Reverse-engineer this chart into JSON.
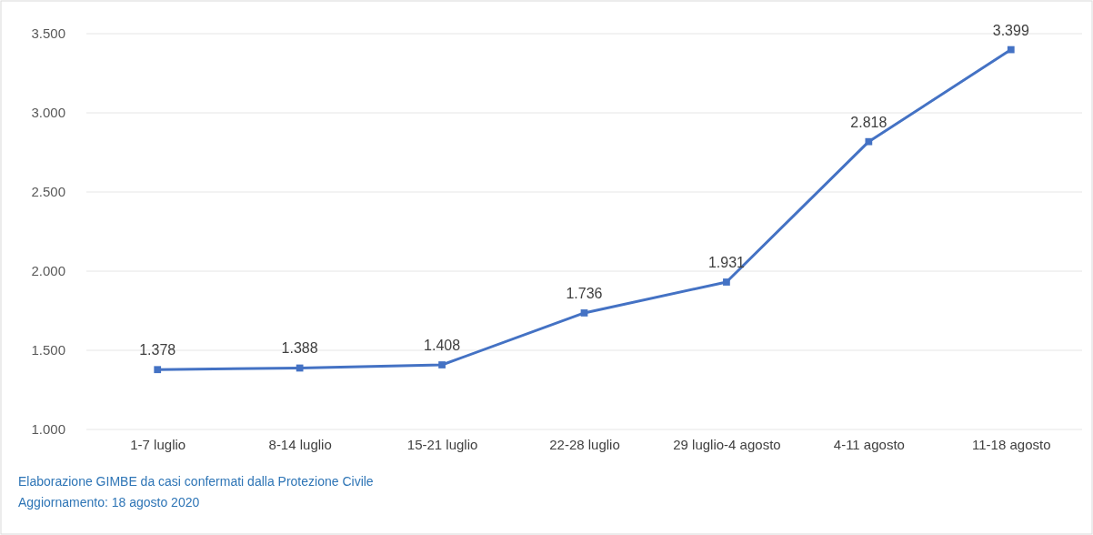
{
  "chart_data": {
    "type": "line",
    "categories": [
      "1-7 luglio",
      "8-14 luglio",
      "15-21 luglio",
      "22-28 luglio",
      "29 luglio-4 agosto",
      "4-11 agosto",
      "11-18 agosto"
    ],
    "series": [
      {
        "color": "#4472c4",
        "values": [
          1378,
          1388,
          1408,
          1736,
          1931,
          2818,
          3399
        ],
        "value_labels": [
          "1.378",
          "1.388",
          "1.408",
          "1.736",
          "1.931",
          "2.818",
          "3.399"
        ]
      }
    ],
    "ylim": [
      1000,
      3500
    ],
    "yticks": [
      {
        "value": 1000,
        "label": "1.000"
      },
      {
        "value": 1500,
        "label": "1.500"
      },
      {
        "value": 2000,
        "label": "2.000"
      },
      {
        "value": 2500,
        "label": "2.500"
      },
      {
        "value": 3000,
        "label": "3.000"
      },
      {
        "value": 3500,
        "label": "3.500"
      }
    ],
    "grid": "y",
    "marker": "square",
    "line_style": "solid",
    "annotations": [
      "Elaborazione GIMBE da casi confermati dalla Protezione Civile",
      "Aggiornamento: 18 agosto 2020"
    ]
  }
}
